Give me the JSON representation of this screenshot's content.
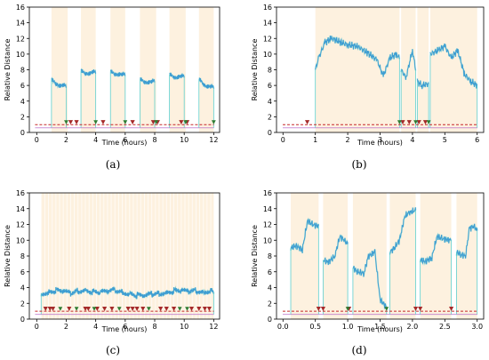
{
  "chart_data": [
    {
      "type": "line",
      "panel": "(a)",
      "xlabel": "Time (hours)",
      "ylabel": "Relative Distance",
      "xlim": [
        -0.5,
        12.4
      ],
      "ylim": [
        0,
        16
      ],
      "xticks": [
        0,
        2,
        4,
        6,
        8,
        10,
        12
      ],
      "yticks": [
        0,
        2,
        4,
        6,
        8,
        10,
        12,
        14,
        16
      ],
      "threshold": 1,
      "shaded_intervals": [
        [
          1.0,
          2.1
        ],
        [
          3.0,
          4.0
        ],
        [
          5.0,
          6.0
        ],
        [
          7.0,
          8.1
        ],
        [
          9.0,
          10.1
        ],
        [
          11.0,
          12.0
        ]
      ],
      "baseline": 0.6,
      "segments": [
        {
          "x": [
            1.0,
            1.2,
            1.4,
            1.6,
            1.8,
            2.0
          ],
          "y": [
            6.8,
            6.6,
            6.3,
            6.0,
            5.9,
            5.7
          ]
        },
        {
          "x": [
            3.0,
            3.2,
            3.4,
            3.6,
            3.8,
            4.0
          ],
          "y": [
            7.9,
            7.8,
            7.7,
            7.6,
            7.6,
            7.5
          ]
        },
        {
          "x": [
            5.0,
            5.2,
            5.4,
            5.6,
            5.8,
            6.0
          ],
          "y": [
            7.8,
            7.7,
            7.6,
            7.5,
            7.3,
            7.2
          ]
        },
        {
          "x": [
            7.0,
            7.2,
            7.4,
            7.6,
            7.8,
            8.0
          ],
          "y": [
            6.8,
            6.7,
            6.6,
            6.5,
            6.4,
            6.4
          ]
        },
        {
          "x": [
            9.0,
            9.2,
            9.4,
            9.6,
            9.8,
            10.0
          ],
          "y": [
            7.4,
            7.3,
            7.2,
            7.2,
            7.1,
            7.0
          ]
        },
        {
          "x": [
            11.0,
            11.2,
            11.4,
            11.6,
            11.8,
            12.0
          ],
          "y": [
            6.8,
            6.5,
            6.2,
            6.0,
            5.8,
            5.6
          ]
        }
      ],
      "markers_red": [
        2.3,
        2.7,
        4.5,
        6.5,
        7.9,
        8.2,
        9.8,
        10.2
      ],
      "markers_green": [
        2.0,
        4.0,
        6.0,
        8.1,
        10.1,
        12.0
      ]
    },
    {
      "type": "line",
      "panel": "(b)",
      "xlabel": "Time (hours)",
      "ylabel": "Relative Distance",
      "xlim": [
        -0.2,
        6.2
      ],
      "ylim": [
        0,
        16
      ],
      "xticks": [
        0,
        1,
        2,
        3,
        4,
        5,
        6
      ],
      "yticks": [
        0,
        2,
        4,
        6,
        8,
        10,
        12,
        14,
        16
      ],
      "threshold": 1,
      "shaded_intervals": [
        [
          1.0,
          3.6
        ],
        [
          3.65,
          4.1
        ],
        [
          4.15,
          4.5
        ],
        [
          4.55,
          6.0
        ]
      ],
      "baseline": 0.6,
      "segments": [
        {
          "x": [
            1.0,
            1.1,
            1.3,
            1.5,
            1.8,
            2.0,
            2.3,
            2.6,
            2.9,
            3.1,
            3.3,
            3.5,
            3.6
          ],
          "y": [
            8.0,
            9.5,
            11.5,
            12.0,
            11.5,
            11.2,
            11.0,
            10.2,
            9.3,
            7.2,
            9.5,
            10.0,
            9.5
          ]
        },
        {
          "x": [
            3.65,
            3.8,
            4.0,
            4.1
          ],
          "y": [
            8.0,
            7.0,
            10.5,
            8.0
          ]
        },
        {
          "x": [
            4.15,
            4.3,
            4.5
          ],
          "y": [
            6.5,
            6.0,
            6.2
          ]
        },
        {
          "x": [
            4.55,
            4.8,
            5.0,
            5.2,
            5.4,
            5.6,
            5.8,
            6.0
          ],
          "y": [
            10.0,
            10.5,
            11.0,
            9.5,
            10.5,
            7.5,
            6.5,
            6.0
          ]
        }
      ],
      "markers_red": [
        0.75,
        3.7,
        3.9,
        4.2,
        4.4
      ],
      "markers_green": [
        3.6,
        4.1,
        4.5
      ]
    },
    {
      "type": "line",
      "panel": "(c)",
      "xlabel": "Time (hours)",
      "ylabel": "Relative Distance",
      "xlim": [
        -0.5,
        12.4
      ],
      "ylim": [
        0,
        16
      ],
      "xticks": [
        0,
        2,
        4,
        6,
        8,
        10,
        12
      ],
      "yticks": [
        0,
        2,
        4,
        6,
        8,
        10,
        12,
        14,
        16
      ],
      "threshold": 1,
      "shaded_intervals": [
        [
          0.3,
          12.0
        ]
      ],
      "baseline": 0.6,
      "segments": [
        {
          "x": [
            0.3,
            0.8,
            1.3,
            1.8,
            2.3,
            2.8,
            3.3,
            3.8,
            4.3,
            4.8,
            5.3,
            5.8,
            6.3,
            6.8,
            7.3,
            7.8,
            8.3,
            8.8,
            9.3,
            9.8,
            10.3,
            10.8,
            11.3,
            11.8,
            12.0
          ],
          "y": [
            3.3,
            3.5,
            3.6,
            3.4,
            3.2,
            3.6,
            3.8,
            3.5,
            3.3,
            3.4,
            3.7,
            3.5,
            3.3,
            3.0,
            2.8,
            3.1,
            3.3,
            3.5,
            3.6,
            3.5,
            3.4,
            3.6,
            3.5,
            3.7,
            3.4
          ]
        }
      ],
      "markers_red": [
        0.6,
        0.9,
        1.1,
        2.2,
        3.3,
        3.5,
        4.1,
        4.6,
        5.1,
        6.2,
        6.5,
        6.8,
        7.2,
        8.4,
        8.8,
        9.3,
        10.5,
        11.0,
        11.4,
        11.7
      ],
      "markers_green": [
        1.6,
        2.7,
        3.9,
        5.6,
        7.6,
        9.7,
        10.2
      ]
    },
    {
      "type": "line",
      "panel": "(d)",
      "xlabel": "Time (hours)",
      "ylabel": "Relative Distance",
      "xlim": [
        -0.1,
        3.1
      ],
      "ylim": [
        0,
        16
      ],
      "xticks": [
        0.0,
        0.5,
        1.0,
        1.5,
        2.0,
        2.5,
        3.0
      ],
      "yticks": [
        0,
        2,
        4,
        6,
        8,
        10,
        12,
        14,
        16
      ],
      "threshold": 1,
      "shaded_intervals": [
        [
          0.12,
          0.55
        ],
        [
          0.62,
          1.0
        ],
        [
          1.08,
          1.6
        ],
        [
          1.65,
          2.05
        ],
        [
          2.12,
          2.6
        ],
        [
          2.68,
          3.0
        ]
      ],
      "baseline": 0.6,
      "segments": [
        {
          "x": [
            0.12,
            0.2,
            0.3,
            0.38,
            0.45,
            0.55
          ],
          "y": [
            9.0,
            9.3,
            8.8,
            12.5,
            12.0,
            11.8
          ]
        },
        {
          "x": [
            0.62,
            0.7,
            0.8,
            0.88,
            0.95,
            1.0
          ],
          "y": [
            7.5,
            7.2,
            8.0,
            10.5,
            10.0,
            9.5
          ]
        },
        {
          "x": [
            1.08,
            1.15,
            1.25,
            1.32,
            1.42,
            1.5,
            1.6
          ],
          "y": [
            6.5,
            6.0,
            5.8,
            8.0,
            8.5,
            2.5,
            1.5
          ]
        },
        {
          "x": [
            1.65,
            1.72,
            1.8,
            1.88,
            1.95,
            2.05
          ],
          "y": [
            8.5,
            9.0,
            10.0,
            13.0,
            13.5,
            13.8
          ]
        },
        {
          "x": [
            2.12,
            2.2,
            2.3,
            2.38,
            2.45,
            2.6
          ],
          "y": [
            7.5,
            7.3,
            7.8,
            10.5,
            10.2,
            10.0
          ]
        },
        {
          "x": [
            2.68,
            2.75,
            2.82,
            2.88,
            2.95,
            3.0
          ],
          "y": [
            8.5,
            8.2,
            8.0,
            11.5,
            11.8,
            11.2
          ]
        }
      ],
      "markers_red": [
        0.55,
        0.62,
        1.02,
        2.05,
        2.12,
        2.6
      ],
      "markers_green": [
        1.0,
        1.6
      ]
    }
  ],
  "colors": {
    "shade": "#fdf1df",
    "line": "#3d9bd2",
    "line_light": "#5fd0cf",
    "threshold": "#c62828",
    "marker_red": "#a52a2a",
    "marker_green": "#2e7d32",
    "baseline": "#b565c8"
  }
}
